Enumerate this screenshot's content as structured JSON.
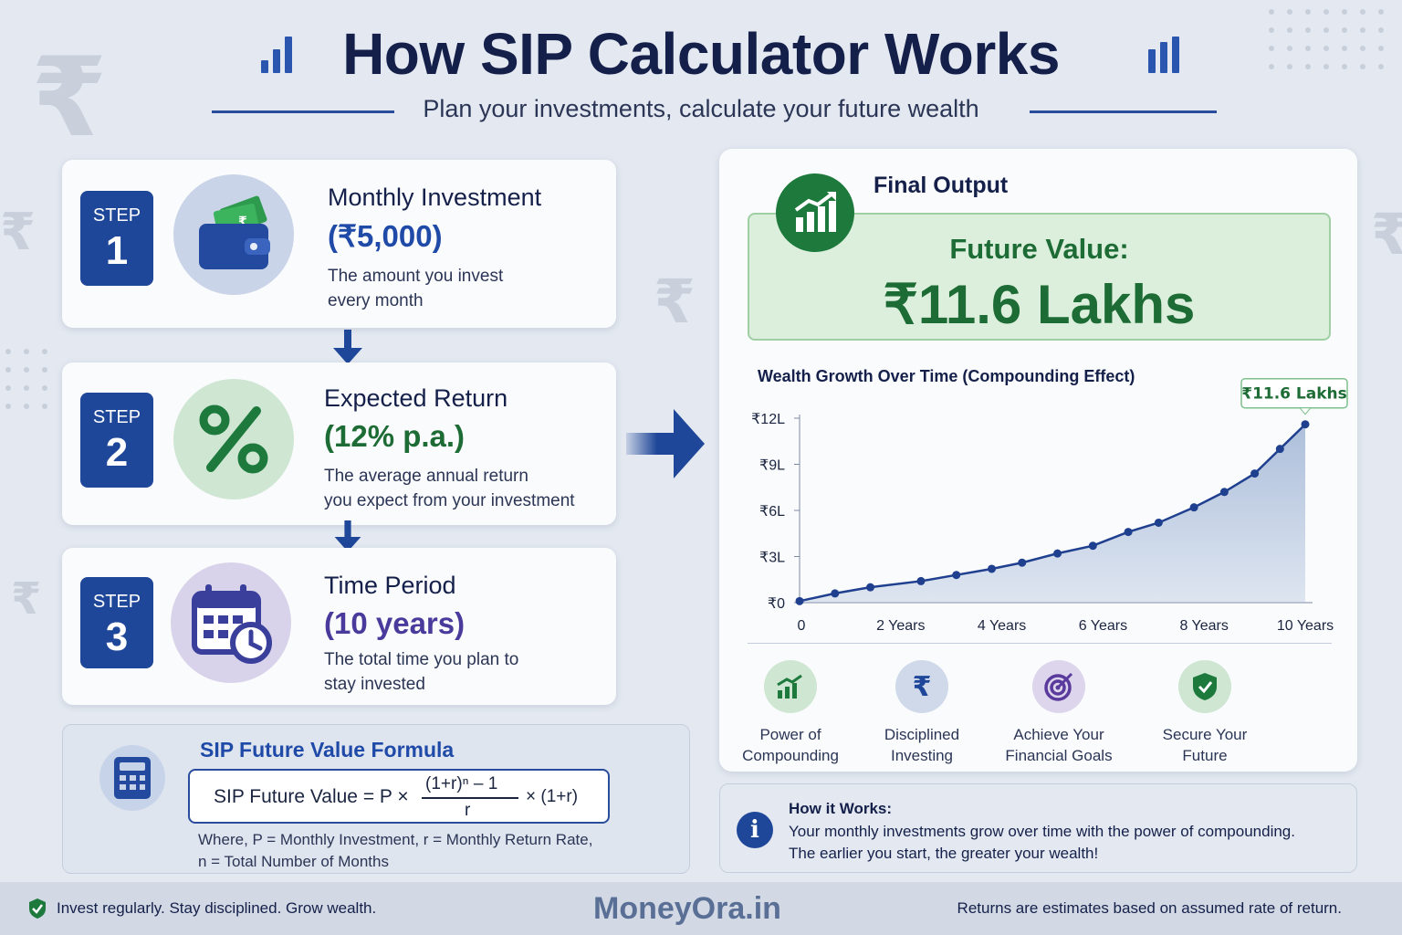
{
  "header": {
    "title": "How SIP Calculator Works",
    "subtitle": "Plan your investments, calculate your future wealth"
  },
  "steps": [
    {
      "badge": "STEP",
      "number": "1",
      "title": "Monthly Investment",
      "value": "(₹5,000)",
      "desc_line1": "The amount you invest",
      "desc_line2": "every month",
      "icon": "wallet-icon",
      "value_color": "#1f4aa8"
    },
    {
      "badge": "STEP",
      "number": "2",
      "title": "Expected Return",
      "value": "(12% p.a.)",
      "desc_line1": "The average annual return",
      "desc_line2": "you expect from your investment",
      "icon": "percent-icon",
      "value_color": "#1d6b35"
    },
    {
      "badge": "STEP",
      "number": "3",
      "title": "Time Period",
      "value": "(10 years)",
      "desc_line1": "The total time you plan to",
      "desc_line2": "stay invested",
      "icon": "calendar-clock-icon",
      "value_color": "#4a3a9c"
    }
  ],
  "formula": {
    "title": "SIP Future Value Formula",
    "lhs": "SIP Future Value = P ×",
    "numerator": "(1+r)ⁿ – 1",
    "denominator": "r",
    "rhs": "× (1+r)",
    "where_line1": "Where, P = Monthly Investment, r = Monthly Return Rate,",
    "where_line2": "n = Total Number of Months"
  },
  "output": {
    "heading": "Final Output",
    "fv_label": "Future Value:",
    "fv_value": "₹11.6 Lakhs",
    "chart_title": "Wealth Growth Over Time (Compounding Effect)",
    "callout": "₹11.6 Lakhs"
  },
  "chart_data": {
    "type": "area",
    "title": "Wealth Growth Over Time (Compounding Effect)",
    "xlabel": "",
    "ylabel": "",
    "x_ticks": [
      "0",
      "2 Years",
      "4 Years",
      "6 Years",
      "8 Years",
      "10 Years"
    ],
    "x_tick_values": [
      0,
      2,
      4,
      6,
      8,
      10
    ],
    "y_ticks": [
      "₹0",
      "₹3L",
      "₹6L",
      "₹9L",
      "₹12L"
    ],
    "y_tick_values": [
      0,
      3,
      6,
      9,
      12
    ],
    "xlim": [
      0,
      10
    ],
    "ylim": [
      0,
      12
    ],
    "x": [
      0,
      0.7,
      1.4,
      2.4,
      3.1,
      3.8,
      4.4,
      5.1,
      5.8,
      6.5,
      7.1,
      7.8,
      8.4,
      9.0,
      9.5,
      10
    ],
    "y": [
      0.1,
      0.6,
      1.0,
      1.4,
      1.8,
      2.2,
      2.6,
      3.2,
      3.7,
      4.6,
      5.2,
      6.2,
      7.2,
      8.4,
      10.0,
      11.6
    ],
    "grid": false,
    "line_color": "#1f3f8f",
    "fill_color": "#a9bcd9"
  },
  "benefits": [
    {
      "line1": "Power of",
      "line2": "Compounding",
      "icon": "growth-chart-icon",
      "bg": "#cfe6d3"
    },
    {
      "line1": "Disciplined",
      "line2": "Investing",
      "icon": "rupee-icon",
      "bg": "#cfd9ea"
    },
    {
      "line1": "Achieve Your",
      "line2": "Financial Goals",
      "icon": "target-icon",
      "bg": "#ddd5ec"
    },
    {
      "line1": "Secure Your",
      "line2": "Future",
      "icon": "shield-icon",
      "bg": "#cfe6d3"
    }
  ],
  "how": {
    "title": "How it Works:",
    "line1": "Your monthly investments grow over time with the power of compounding.",
    "line2": "The earlier you start, the greater your wealth!"
  },
  "footer": {
    "left": "Invest regularly. Stay disciplined. Grow wealth.",
    "brand": "MoneyOra.in",
    "right": "Returns are estimates based on assumed rate of return."
  }
}
